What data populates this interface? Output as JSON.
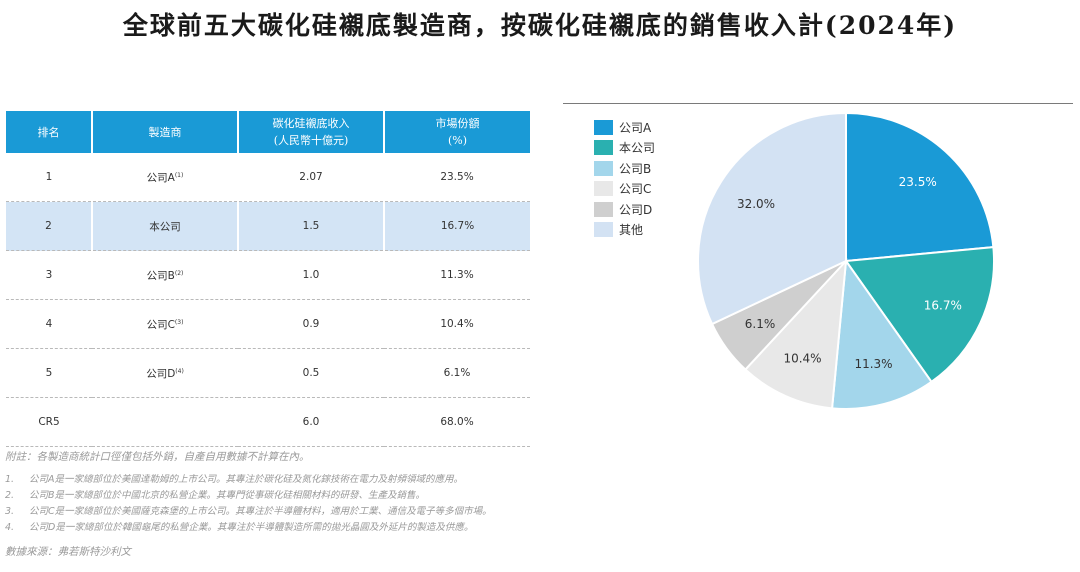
{
  "title": "全球前五大碳化硅襯底製造商，按碳化硅襯底的銷售收入計(2024年)",
  "table": {
    "headers": [
      {
        "line1": "排名",
        "line2": ""
      },
      {
        "line1": "製造商",
        "line2": ""
      },
      {
        "line1": "碳化硅襯底收入",
        "line2": "(人民幣十億元)"
      },
      {
        "line1": "市場份額",
        "line2": "(%)"
      }
    ],
    "rows": [
      {
        "rank": "1",
        "name": "公司A",
        "note": "(1)",
        "revenue": "2.07",
        "share": "23.5%"
      },
      {
        "rank": "2",
        "name": "本公司",
        "note": "",
        "revenue": "1.5",
        "share": "16.7%"
      },
      {
        "rank": "3",
        "name": "公司B",
        "note": "(2)",
        "revenue": "1.0",
        "share": "11.3%"
      },
      {
        "rank": "4",
        "name": "公司C",
        "note": "(3)",
        "revenue": "0.9",
        "share": "10.4%"
      },
      {
        "rank": "5",
        "name": "公司D",
        "note": "(4)",
        "revenue": "0.5",
        "share": "6.1%"
      },
      {
        "rank": "CR5",
        "name": "",
        "note": "",
        "revenue": "6.0",
        "share": "68.0%"
      }
    ]
  },
  "notes": {
    "header": "附註：各製造商統計口徑僅包括外銷，自產自用數據不計算在內。",
    "items": [
      {
        "num": "1.",
        "text": "公司A是一家總部位於美國達勒姆的上市公司。其專注於碳化硅及氮化鎵技術在電力及射頻領域的應用。"
      },
      {
        "num": "2.",
        "text": "公司B是一家總部位於中國北京的私營企業。其專門從事碳化硅相關材料的研發、生產及銷售。"
      },
      {
        "num": "3.",
        "text": "公司C是一家總部位於美國薩克森堡的上市公司。其專注於半導體材料，適用於工業、通信及電子等多個市場。"
      },
      {
        "num": "4.",
        "text": "公司D是一家總部位於韓國龜尾的私營企業。其專注於半導體製造所需的拋光晶圓及外延片的製造及供應。"
      }
    ],
    "source": "數據來源：弗若斯特沙利文"
  },
  "chart_data": {
    "type": "pie",
    "title": "",
    "legend_position": "top-left",
    "slices": [
      {
        "label": "公司A",
        "value": 23.5,
        "display": "23.5%",
        "color": "#1a9ad6",
        "label_color": "#ffffff"
      },
      {
        "label": "本公司",
        "value": 16.7,
        "display": "16.7%",
        "color": "#2ab0b0",
        "label_color": "#ffffff"
      },
      {
        "label": "公司B",
        "value": 11.3,
        "display": "11.3%",
        "color": "#a3d6eb",
        "label_color": "#333333"
      },
      {
        "label": "公司C",
        "value": 10.4,
        "display": "10.4%",
        "color": "#e8e8e8",
        "label_color": "#333333"
      },
      {
        "label": "公司D",
        "value": 6.1,
        "display": "6.1%",
        "color": "#cfcfcf",
        "label_color": "#333333"
      },
      {
        "label": "其他",
        "value": 32.0,
        "display": "32.0%",
        "color": "#d3e2f3",
        "label_color": "#333333"
      }
    ]
  }
}
